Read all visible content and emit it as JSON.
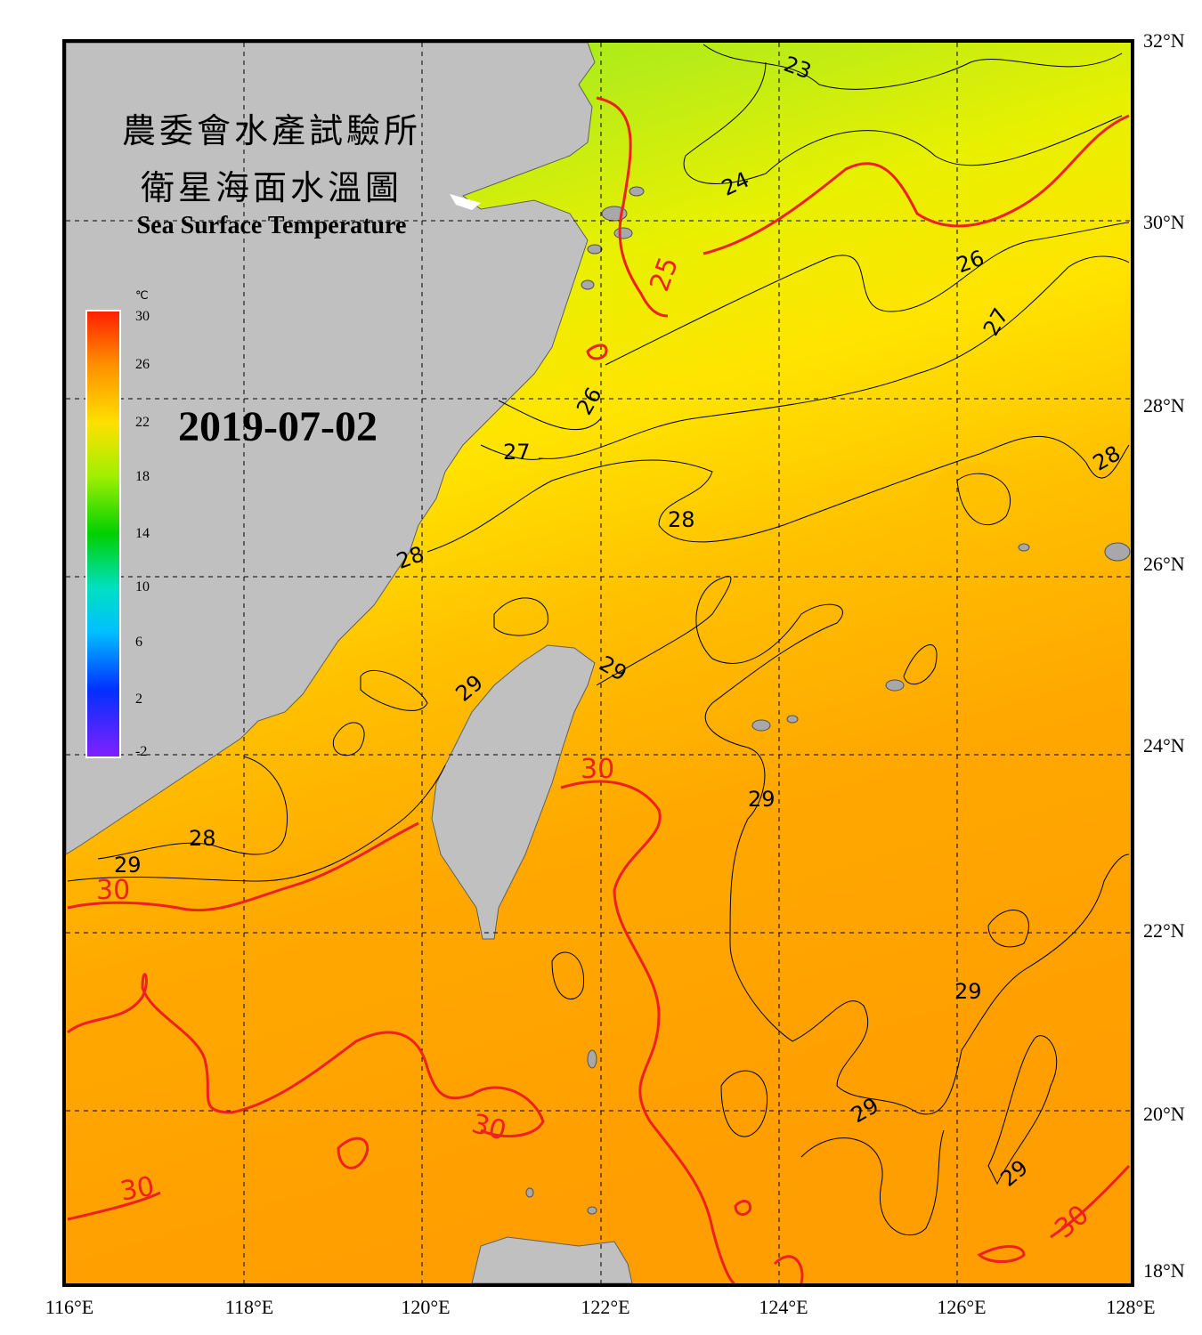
{
  "header": {
    "title_cn_1": "農委會水產試驗所",
    "title_cn_2": "衛星海面水溫圖",
    "title_en": "Sea Surface Temperature",
    "date": "2019-07-02"
  },
  "colorbar": {
    "unit": "℃",
    "ticks": [
      "30",
      "26",
      "22",
      "18",
      "14",
      "10",
      "6",
      "2",
      "-2"
    ],
    "range": [
      -2,
      30
    ]
  },
  "axes": {
    "lat_labels": [
      "32°N",
      "30°N",
      "28°N",
      "26°N",
      "24°N",
      "22°N",
      "20°N",
      "18°N"
    ],
    "lon_labels": [
      "116°E",
      "118°E",
      "120°E",
      "122°E",
      "124°E",
      "126°E",
      "128°E"
    ]
  },
  "contour_labels": [
    "23",
    "24",
    "25",
    "26",
    "26",
    "26",
    "27",
    "27",
    "28",
    "28",
    "28",
    "28",
    "29",
    "29",
    "29",
    "29",
    "29",
    "29",
    "29",
    "30",
    "30",
    "30",
    "30",
    "30"
  ],
  "colors": {
    "land": "#c0c0c0",
    "warm_water": "#ffa500",
    "mid_water": "#ffe000",
    "cool_water": "#b8e818",
    "cold_water": "#80ee10",
    "contour_30": "#ee2020",
    "contour_other": "#000000"
  }
}
